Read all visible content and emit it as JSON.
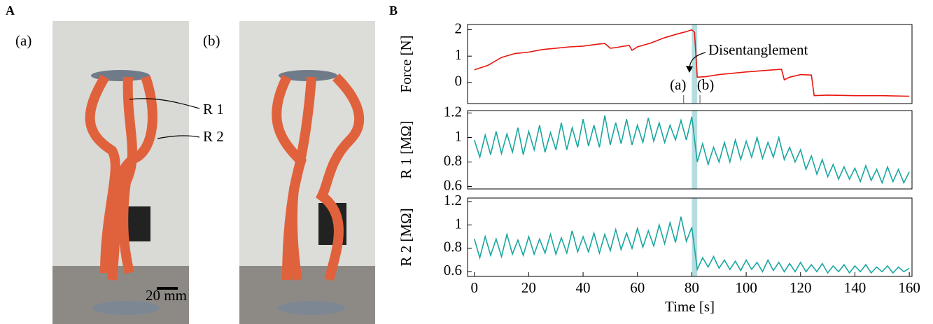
{
  "panel_labels": [
    "A",
    "B"
  ],
  "photo_labels": {
    "a": "(a)",
    "b": "(b)",
    "r1": "R 1",
    "r2": "R 2",
    "scale": "20 mm"
  },
  "chart_data": [
    {
      "type": "line",
      "ylabel": "Force [N]",
      "color": "#e8160e",
      "x": [
        0,
        5,
        10,
        15,
        20,
        25,
        30,
        35,
        40,
        45,
        48,
        50,
        52,
        55,
        57,
        58,
        60,
        65,
        70,
        75,
        78,
        80,
        81,
        82,
        85,
        90,
        100,
        110,
        113,
        114,
        116,
        120,
        124,
        125,
        130,
        140,
        150,
        160
      ],
      "values": [
        0.48,
        0.65,
        0.95,
        1.1,
        1.15,
        1.25,
        1.3,
        1.35,
        1.38,
        1.45,
        1.48,
        1.3,
        1.32,
        1.38,
        1.4,
        1.22,
        1.35,
        1.5,
        1.7,
        1.85,
        1.93,
        2.0,
        1.9,
        0.2,
        0.22,
        0.3,
        0.4,
        0.48,
        0.5,
        0.1,
        0.2,
        0.3,
        0.28,
        -0.5,
        -0.48,
        -0.5,
        -0.5,
        -0.52
      ],
      "xlim": [
        -2.5,
        161
      ],
      "ylim": [
        -0.8,
        2.2
      ],
      "yticks": [
        0,
        1,
        2
      ],
      "shaded_span": [
        80,
        82
      ],
      "shade_color": "#b5dde0",
      "annotation": "Disentanglement",
      "markers": [
        {
          "label": "(a)",
          "x": 77
        },
        {
          "label": "(b)",
          "x": 83
        }
      ]
    },
    {
      "type": "line",
      "ylabel": "R 1 [MΩ]",
      "color": "#1aa6a0",
      "x": [
        0,
        2,
        4,
        6,
        8,
        10,
        12,
        14,
        16,
        18,
        20,
        22,
        24,
        26,
        28,
        30,
        32,
        34,
        36,
        38,
        40,
        42,
        44,
        46,
        48,
        50,
        52,
        54,
        56,
        58,
        60,
        62,
        64,
        66,
        68,
        70,
        72,
        74,
        76,
        78,
        80,
        82,
        84,
        86,
        88,
        90,
        92,
        94,
        96,
        98,
        100,
        102,
        104,
        106,
        108,
        110,
        112,
        114,
        116,
        118,
        120,
        122,
        124,
        126,
        128,
        130,
        132,
        134,
        136,
        138,
        140,
        142,
        144,
        146,
        148,
        150,
        152,
        154,
        156,
        158,
        160
      ],
      "values": [
        0.98,
        0.84,
        1.02,
        0.86,
        1.05,
        0.87,
        1.03,
        0.88,
        1.08,
        0.86,
        1.05,
        0.9,
        1.1,
        0.88,
        1.04,
        0.9,
        1.12,
        0.9,
        1.08,
        0.92,
        1.15,
        0.93,
        1.1,
        0.92,
        1.18,
        0.94,
        1.12,
        0.95,
        1.15,
        0.94,
        1.1,
        0.96,
        1.16,
        0.97,
        1.12,
        0.96,
        1.1,
        0.98,
        1.14,
        0.98,
        1.17,
        0.8,
        0.95,
        0.78,
        0.92,
        0.8,
        0.96,
        0.8,
        0.98,
        0.82,
        0.97,
        0.84,
        1.0,
        0.83,
        0.96,
        0.84,
        1.0,
        0.82,
        0.92,
        0.8,
        0.9,
        0.74,
        0.85,
        0.7,
        0.82,
        0.68,
        0.78,
        0.66,
        0.76,
        0.66,
        0.75,
        0.64,
        0.77,
        0.65,
        0.74,
        0.63,
        0.76,
        0.64,
        0.74,
        0.63,
        0.72
      ],
      "xlim": [
        -2.5,
        161
      ],
      "ylim": [
        0.58,
        1.22
      ],
      "yticks": [
        0.6,
        0.8,
        1,
        1.2
      ],
      "shaded_span": [
        80,
        82
      ],
      "shade_color": "#b5dde0"
    },
    {
      "type": "line",
      "ylabel": "R 2 [MΩ]",
      "xlabel": "Time [s]",
      "color": "#1aa6a0",
      "x": [
        0,
        2,
        4,
        6,
        8,
        10,
        12,
        14,
        16,
        18,
        20,
        22,
        24,
        26,
        28,
        30,
        32,
        34,
        36,
        38,
        40,
        42,
        44,
        46,
        48,
        50,
        52,
        54,
        56,
        58,
        60,
        62,
        64,
        66,
        68,
        70,
        72,
        74,
        76,
        78,
        80,
        82,
        84,
        86,
        88,
        90,
        92,
        94,
        96,
        98,
        100,
        102,
        104,
        106,
        108,
        110,
        112,
        114,
        116,
        118,
        120,
        122,
        124,
        126,
        128,
        130,
        132,
        134,
        136,
        138,
        140,
        142,
        144,
        146,
        148,
        150,
        152,
        154,
        156,
        158,
        160
      ],
      "values": [
        0.88,
        0.72,
        0.9,
        0.74,
        0.88,
        0.73,
        0.92,
        0.75,
        0.87,
        0.74,
        0.9,
        0.75,
        0.88,
        0.76,
        0.92,
        0.75,
        0.89,
        0.76,
        0.95,
        0.77,
        0.9,
        0.77,
        0.93,
        0.76,
        0.92,
        0.78,
        0.96,
        0.79,
        0.93,
        0.8,
        0.97,
        0.81,
        0.95,
        0.82,
        1.0,
        0.84,
        1.02,
        0.85,
        1.07,
        0.86,
        0.98,
        0.62,
        0.72,
        0.64,
        0.73,
        0.63,
        0.7,
        0.62,
        0.69,
        0.61,
        0.7,
        0.62,
        0.68,
        0.6,
        0.7,
        0.61,
        0.68,
        0.6,
        0.67,
        0.6,
        0.68,
        0.6,
        0.66,
        0.6,
        0.67,
        0.59,
        0.65,
        0.6,
        0.66,
        0.59,
        0.65,
        0.6,
        0.66,
        0.59,
        0.64,
        0.6,
        0.65,
        0.59,
        0.64,
        0.6,
        0.63
      ],
      "xlim": [
        -2.5,
        161
      ],
      "ylim": [
        0.56,
        1.23
      ],
      "yticks": [
        0.6,
        0.8,
        1,
        1.2
      ],
      "xticks": [
        0,
        20,
        40,
        60,
        80,
        100,
        120,
        140,
        160
      ],
      "shaded_span": [
        80,
        82
      ],
      "shade_color": "#b5dde0"
    }
  ]
}
